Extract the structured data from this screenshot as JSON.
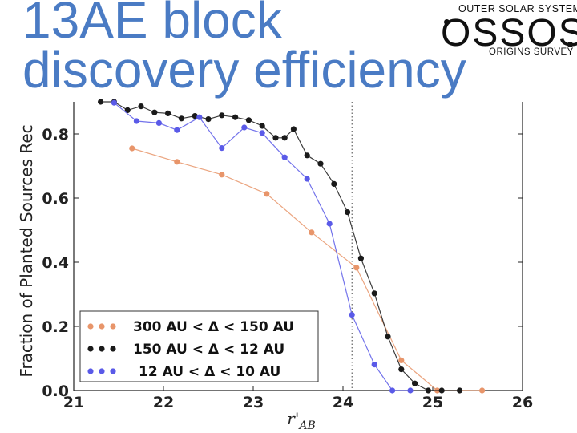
{
  "title_line1": "13AE block",
  "title_line2": "discovery efficiency",
  "logo": {
    "top": "OUTER SOLAR SYSTEM",
    "mid": "OSSOS",
    "bottom": "ORIGINS SURVEY"
  },
  "chart_data": {
    "type": "line",
    "title": "",
    "xlabel": "r'",
    "xlabel_sub": "AB",
    "ylabel": "Fraction of Planted Sources Rec",
    "xlim": [
      21,
      26
    ],
    "ylim": [
      0.0,
      0.9
    ],
    "xticks": [
      "21",
      "22",
      "23",
      "24",
      "25",
      "26"
    ],
    "yticks": [
      "0.0",
      "0.2",
      "0.4",
      "0.6",
      "0.8"
    ],
    "vline_x": 24.1,
    "legend_position": "lower-left",
    "series": [
      {
        "name": "300 AU < Δ < 150 AU",
        "color": "#e8956a",
        "x": [
          21.65,
          22.15,
          22.65,
          23.15,
          23.65,
          24.15,
          24.65,
          25.05,
          25.55
        ],
        "y": [
          0.755,
          0.713,
          0.673,
          0.613,
          0.493,
          0.383,
          0.094,
          0.0,
          0.0
        ]
      },
      {
        "name": "150 AU < Δ < 12 AU",
        "color": "#1a1a1a",
        "x": [
          21.3,
          21.45,
          21.6,
          21.75,
          21.9,
          22.05,
          22.2,
          22.35,
          22.5,
          22.65,
          22.8,
          22.95,
          23.1,
          23.25,
          23.35,
          23.45,
          23.6,
          23.75,
          23.9,
          24.05,
          24.2,
          24.35,
          24.5,
          24.65,
          24.8,
          24.95,
          25.1,
          25.3
        ],
        "y": [
          0.9,
          0.9,
          0.874,
          0.886,
          0.867,
          0.864,
          0.848,
          0.856,
          0.846,
          0.858,
          0.852,
          0.843,
          0.825,
          0.788,
          0.788,
          0.815,
          0.733,
          0.707,
          0.644,
          0.556,
          0.412,
          0.303,
          0.168,
          0.066,
          0.022,
          0.0,
          0.0,
          0.0
        ]
      },
      {
        "name": "12 AU < Δ < 10 AU",
        "color": "#5a5ae8",
        "x": [
          21.45,
          21.7,
          21.95,
          22.15,
          22.4,
          22.65,
          22.9,
          23.1,
          23.35,
          23.6,
          23.85,
          24.1,
          24.35,
          24.55,
          24.75
        ],
        "y": [
          0.897,
          0.84,
          0.834,
          0.812,
          0.852,
          0.756,
          0.82,
          0.803,
          0.727,
          0.66,
          0.52,
          0.236,
          0.081,
          0.0,
          0.0
        ]
      }
    ]
  }
}
